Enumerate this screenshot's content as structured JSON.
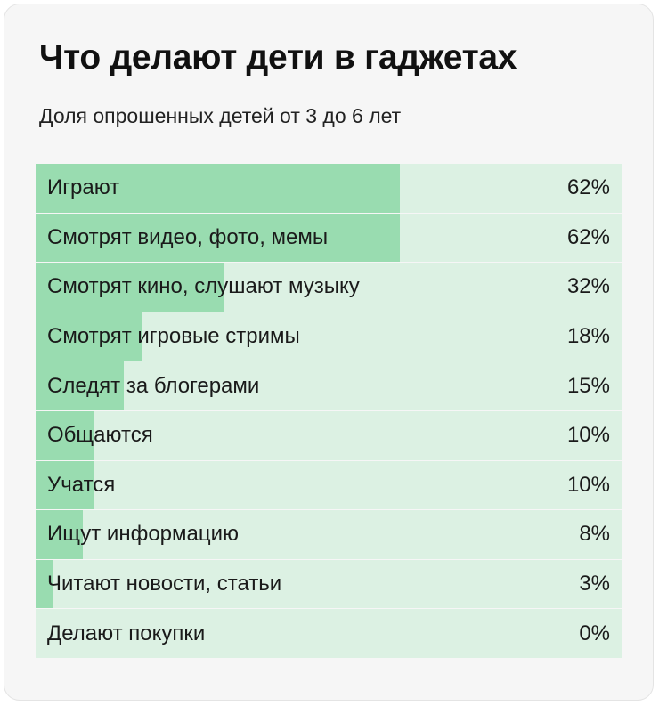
{
  "colors": {
    "card_background": "#f6f6f6",
    "bar_fill": "#99dcb0",
    "bar_track": "#dcf1e3",
    "text": "#1a1a1a"
  },
  "chart_data": {
    "type": "bar",
    "orientation": "horizontal",
    "title": "Что делают дети в гаджетах",
    "subtitle": "Доля опрошенных детей от 3 до 6 лет",
    "xlim": [
      0,
      100
    ],
    "grid": false,
    "categories": [
      "Играют",
      "Смотрят видео, фото, мемы",
      "Смотрят кино, слушают музыку",
      "Смотрят игровые стримы",
      "Следят за блогерами",
      "Общаются",
      "Учатся",
      "Ищут информацию",
      "Читают новости, статьи",
      "Делают покупки"
    ],
    "values": [
      62,
      62,
      32,
      18,
      15,
      10,
      10,
      8,
      3,
      0
    ],
    "value_labels": [
      "62%",
      "62%",
      "32%",
      "18%",
      "15%",
      "10%",
      "10%",
      "8%",
      "3%",
      "0%"
    ]
  }
}
